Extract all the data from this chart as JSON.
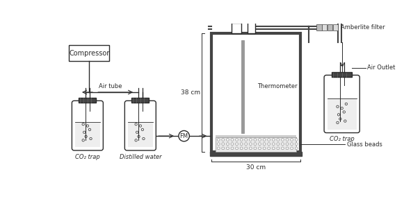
{
  "bg_color": "#ffffff",
  "line_color": "#2a2a2a",
  "fill_color": "#ffffff",
  "dark_color": "#444444",
  "gray_color": "#888888",
  "light_gray": "#cccccc",
  "hatch_gray": "#aaaaaa",
  "labels": {
    "compressor": "Compressor",
    "air_tube": "Air tube",
    "co2_trap_left": "CO₂ trap",
    "distilled_water": "Distilled water",
    "fm": "FM",
    "thermometer": "Thermometer",
    "height_label": "38 cm",
    "width_label": "30 cm",
    "amberlite": "Amberlite filter",
    "air_outlet": "Air Outlet",
    "co2_trap_right": "CO₂ trap",
    "glass_beads": "Glass beads"
  }
}
